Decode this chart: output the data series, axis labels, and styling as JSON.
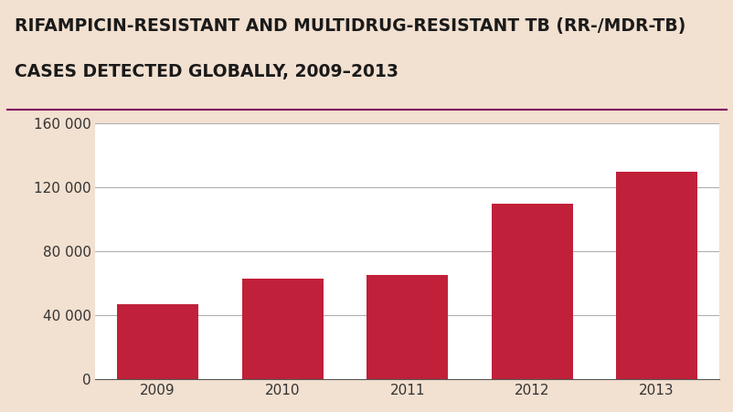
{
  "title_line1": "RIFAMPICIN-RESISTANT AND MULTIDRUG-RESISTANT TB (RR-/MDR-TB)",
  "title_line2": "CASES DETECTED GLOBALLY, 2009–2013",
  "categories": [
    "2009",
    "2010",
    "2011",
    "2012",
    "2013"
  ],
  "values": [
    47000,
    63000,
    65000,
    110000,
    130000
  ],
  "bar_color": "#c0203a",
  "background_color": "#f2e0d0",
  "plot_background": "#ffffff",
  "title_color": "#1a1a1a",
  "ylim": [
    0,
    160000
  ],
  "yticks": [
    0,
    40000,
    80000,
    120000,
    160000
  ],
  "ytick_labels": [
    "0",
    "40 000",
    "80 000",
    "120 000",
    "160 000"
  ],
  "title_fontsize": 13.5,
  "tick_fontsize": 11,
  "separator_color": "#800060",
  "separator_linewidth": 1.5
}
